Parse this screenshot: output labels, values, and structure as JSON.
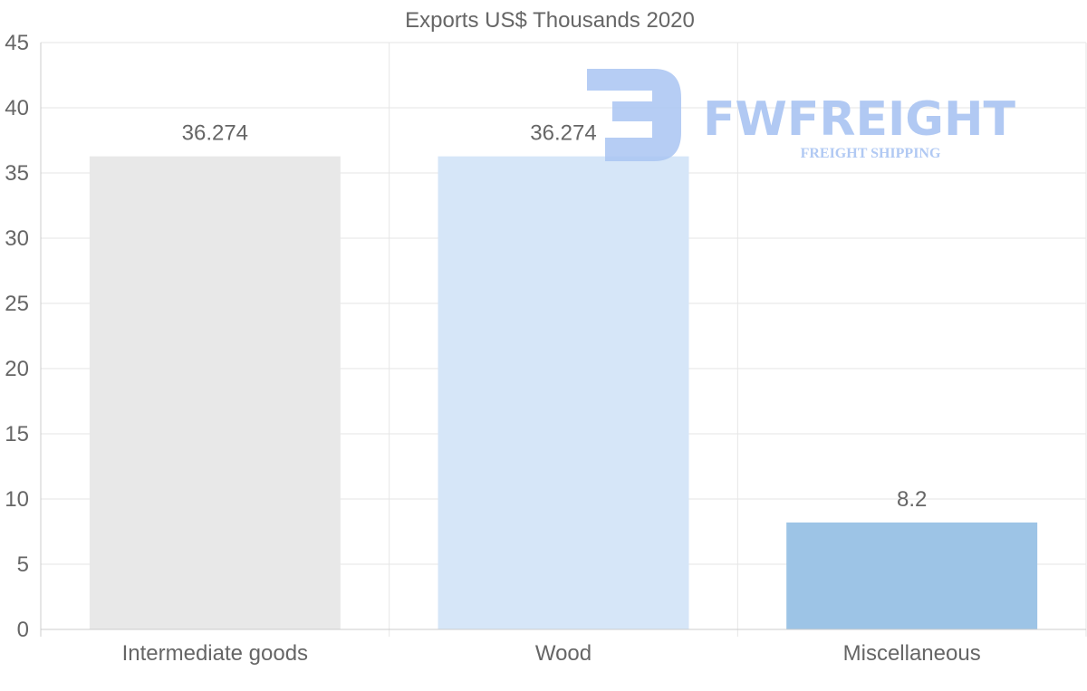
{
  "chart_data": {
    "type": "bar",
    "title": "Exports US$ Thousands 2020",
    "categories": [
      "Intermediate goods",
      "Wood",
      "Miscellaneous"
    ],
    "values": [
      36.274,
      36.274,
      8.2
    ],
    "data_labels": [
      "36.274",
      "36.274",
      "8.2"
    ],
    "colors": [
      "#e8e8e8",
      "#d6e6f8",
      "#9dc4e6"
    ],
    "ylim": [
      0,
      45
    ],
    "yticks": [
      0,
      5,
      10,
      15,
      20,
      25,
      30,
      35,
      40,
      45
    ],
    "xlabel": "",
    "ylabel": "",
    "grid": true
  },
  "watermark": {
    "brand": "FWFREIGHT",
    "tagline": "FREIGHT SHIPPING",
    "color": "#a9c4f2"
  }
}
